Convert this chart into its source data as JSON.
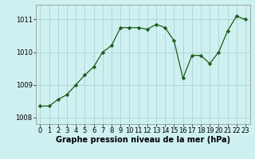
{
  "x": [
    0,
    1,
    2,
    3,
    4,
    5,
    6,
    7,
    8,
    9,
    10,
    11,
    12,
    13,
    14,
    15,
    16,
    17,
    18,
    19,
    20,
    21,
    22,
    23
  ],
  "y": [
    1008.35,
    1008.35,
    1008.55,
    1008.7,
    1009.0,
    1009.3,
    1009.55,
    1010.0,
    1010.2,
    1010.75,
    1010.75,
    1010.75,
    1010.7,
    1010.85,
    1010.75,
    1010.35,
    1009.2,
    1009.9,
    1009.9,
    1009.65,
    1010.0,
    1010.65,
    1011.1,
    1011.0
  ],
  "line_color": "#1a5c1a",
  "marker": "D",
  "marker_size": 2.2,
  "background_color": "#cff0f0",
  "grid_color": "#afd8d8",
  "xlabel": "Graphe pression niveau de la mer (hPa)",
  "xlabel_fontsize": 7,
  "tick_fontsize": 6,
  "ylim": [
    1007.8,
    1011.45
  ],
  "yticks": [
    1008,
    1009,
    1010,
    1011
  ],
  "xlim": [
    -0.5,
    23.5
  ],
  "xticks": [
    0,
    1,
    2,
    3,
    4,
    5,
    6,
    7,
    8,
    9,
    10,
    11,
    12,
    13,
    14,
    15,
    16,
    17,
    18,
    19,
    20,
    21,
    22,
    23
  ]
}
